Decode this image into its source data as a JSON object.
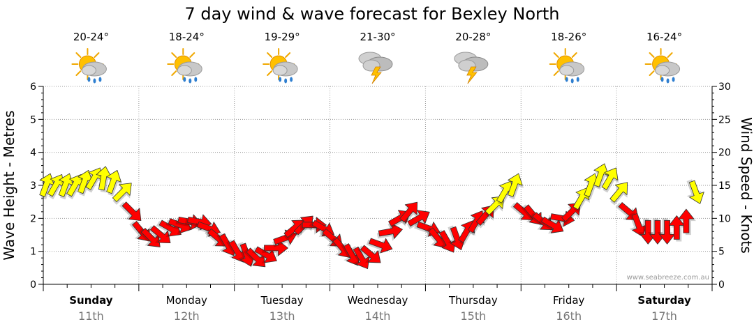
{
  "chart_data": {
    "type": "line",
    "title": "7 day wind & wave forecast for Bexley North",
    "ylabel": "Wave Height - Metres",
    "y2label": "Wind Speed - Knots",
    "ylim": [
      0,
      6
    ],
    "y2lim": [
      0,
      30
    ],
    "yticks": [
      "0",
      "1",
      "2",
      "3",
      "4",
      "5",
      "6"
    ],
    "y2ticks": [
      "0",
      "5",
      "10",
      "15",
      "20",
      "25",
      "30"
    ],
    "watermark": "www.seabreeze.com.au",
    "days": [
      {
        "name": "Sunday",
        "date": "11th",
        "bold": true,
        "temp": "20-24°",
        "icon": "sun-cloud-rain-icon"
      },
      {
        "name": "Monday",
        "date": "12th",
        "bold": false,
        "temp": "18-24°",
        "icon": "sun-cloud-rain-icon"
      },
      {
        "name": "Tuesday",
        "date": "13th",
        "bold": false,
        "temp": "19-29°",
        "icon": "sun-cloud-rain-icon"
      },
      {
        "name": "Wednesday",
        "date": "14th",
        "bold": false,
        "temp": "21-30°",
        "icon": "storm-cloud-icon"
      },
      {
        "name": "Thursday",
        "date": "15th",
        "bold": false,
        "temp": "20-28°",
        "icon": "storm-cloud-icon"
      },
      {
        "name": "Friday",
        "date": "16th",
        "bold": false,
        "temp": "18-26°",
        "icon": "sun-cloud-rain-icon"
      },
      {
        "name": "Saturday",
        "date": "17th",
        "bold": true,
        "temp": "16-24°",
        "icon": "sun-cloud-rain-icon"
      }
    ],
    "colors": {
      "light_wind": "#ffff00",
      "strong_wind": "#ff0000",
      "outline": "#333333",
      "grid": "#999999"
    },
    "wind_threshold_knots": 11.5,
    "series": [
      {
        "name": "Wind Speed - Knots",
        "x_days": [
          0.0,
          0.1,
          0.2,
          0.3,
          0.4,
          0.5,
          0.6,
          0.7,
          0.8,
          0.9,
          1.0,
          1.1,
          1.2,
          1.3,
          1.4,
          1.5,
          1.6,
          1.7,
          1.8,
          1.9,
          2.0,
          2.1,
          2.2,
          2.3,
          2.4,
          2.5,
          2.6,
          2.7,
          2.8,
          2.9,
          3.0,
          3.1,
          3.2,
          3.3,
          3.4,
          3.5,
          3.6,
          3.7,
          3.8,
          3.9,
          4.0,
          4.1,
          4.2,
          4.3,
          4.4,
          4.5,
          4.6,
          4.7,
          4.8,
          4.9,
          5.0,
          5.1,
          5.2,
          5.3,
          5.4,
          5.5,
          5.6,
          5.7,
          5.8,
          5.9,
          6.0,
          6.1,
          6.2,
          6.3,
          6.4,
          6.5,
          6.6,
          6.7,
          6.8
        ],
        "values": [
          15,
          15,
          15,
          15,
          15.5,
          16,
          16,
          15.5,
          14,
          11,
          8,
          7,
          7.5,
          8.5,
          9,
          9.5,
          9.5,
          8.5,
          7,
          6,
          5,
          4.5,
          4,
          4.5,
          5.5,
          7,
          8.5,
          9,
          9,
          8.5,
          7,
          5.5,
          4.5,
          4,
          4.5,
          6,
          8,
          10,
          11,
          10,
          8.5,
          7,
          6.5,
          7,
          8,
          9.5,
          10.5,
          12,
          14,
          15,
          11,
          10.5,
          9.5,
          9,
          10,
          11,
          13,
          15,
          16.5,
          16,
          14,
          11,
          9,
          8,
          8,
          8,
          8.5,
          9.5,
          14
        ],
        "directions_deg": [
          20,
          30,
          20,
          30,
          20,
          30,
          10,
          20,
          45,
          135,
          140,
          135,
          130,
          120,
          110,
          100,
          100,
          110,
          130,
          150,
          150,
          160,
          135,
          120,
          90,
          70,
          50,
          45,
          90,
          120,
          130,
          140,
          150,
          150,
          130,
          110,
          80,
          60,
          40,
          60,
          110,
          140,
          150,
          160,
          30,
          30,
          40,
          45,
          30,
          20,
          130,
          140,
          130,
          120,
          100,
          45,
          30,
          20,
          20,
          30,
          40,
          130,
          160,
          180,
          180,
          180,
          0,
          0,
          160
        ]
      }
    ]
  }
}
